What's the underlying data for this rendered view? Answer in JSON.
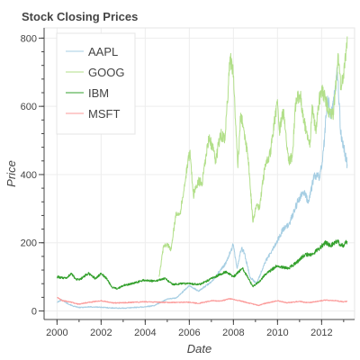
{
  "chart_data": {
    "type": "line",
    "title": "Stock Closing Prices",
    "xlabel": "Date",
    "ylabel": "Price",
    "xlim": [
      "1999-06-01",
      "2013-07-01"
    ],
    "ylim": [
      -25,
      830
    ],
    "x_ticks": [
      "2000",
      "2002",
      "2004",
      "2006",
      "2008",
      "2010",
      "2012"
    ],
    "y_ticks": [
      0,
      200,
      400,
      600,
      800
    ],
    "grid": true,
    "legend_position": "top-left",
    "series": [
      {
        "name": "AAPL",
        "color": "#a6cee3",
        "points": [
          [
            "2000-01-03",
            25
          ],
          [
            "2000-03-20",
            33
          ],
          [
            "2000-06-01",
            24
          ],
          [
            "2000-09-28",
            14
          ],
          [
            "2001-01-01",
            10
          ],
          [
            "2001-06-01",
            12
          ],
          [
            "2002-01-01",
            11
          ],
          [
            "2002-06-01",
            9
          ],
          [
            "2003-01-01",
            8
          ],
          [
            "2003-06-01",
            10
          ],
          [
            "2004-01-01",
            12
          ],
          [
            "2004-06-01",
            16
          ],
          [
            "2005-01-01",
            35
          ],
          [
            "2005-06-01",
            38
          ],
          [
            "2006-01-01",
            75
          ],
          [
            "2006-06-01",
            58
          ],
          [
            "2007-01-01",
            85
          ],
          [
            "2007-06-01",
            120
          ],
          [
            "2007-09-01",
            140
          ],
          [
            "2007-12-27",
            195
          ],
          [
            "2008-03-01",
            125
          ],
          [
            "2008-05-15",
            185
          ],
          [
            "2008-07-01",
            170
          ],
          [
            "2008-10-01",
            100
          ],
          [
            "2009-01-20",
            80
          ],
          [
            "2009-06-01",
            140
          ],
          [
            "2009-12-01",
            195
          ],
          [
            "2010-04-01",
            240
          ],
          [
            "2010-07-01",
            250
          ],
          [
            "2010-12-01",
            320
          ],
          [
            "2011-03-01",
            350
          ],
          [
            "2011-06-01",
            320
          ],
          [
            "2011-09-01",
            400
          ],
          [
            "2011-12-01",
            390
          ],
          [
            "2012-02-01",
            470
          ],
          [
            "2012-04-10",
            630
          ],
          [
            "2012-06-01",
            570
          ],
          [
            "2012-09-20",
            700
          ],
          [
            "2012-11-15",
            520
          ],
          [
            "2013-01-15",
            470
          ],
          [
            "2013-03-01",
            430
          ]
        ]
      },
      {
        "name": "GOOG",
        "color": "#b2df8a",
        "points": [
          [
            "2004-08-19",
            100
          ],
          [
            "2004-11-01",
            190
          ],
          [
            "2005-01-01",
            195
          ],
          [
            "2005-03-01",
            180
          ],
          [
            "2005-06-01",
            290
          ],
          [
            "2005-08-01",
            285
          ],
          [
            "2005-11-01",
            390
          ],
          [
            "2006-01-10",
            470
          ],
          [
            "2006-03-10",
            340
          ],
          [
            "2006-06-01",
            380
          ],
          [
            "2006-08-01",
            375
          ],
          [
            "2006-11-22",
            510
          ],
          [
            "2007-02-01",
            470
          ],
          [
            "2007-03-15",
            440
          ],
          [
            "2007-06-01",
            520
          ],
          [
            "2007-08-15",
            500
          ],
          [
            "2007-11-06",
            745
          ],
          [
            "2008-01-01",
            690
          ],
          [
            "2008-03-15",
            420
          ],
          [
            "2008-05-01",
            580
          ],
          [
            "2008-07-01",
            520
          ],
          [
            "2008-09-01",
            450
          ],
          [
            "2008-11-20",
            260
          ],
          [
            "2009-01-15",
            310
          ],
          [
            "2009-03-10",
            300
          ],
          [
            "2009-06-01",
            420
          ],
          [
            "2009-09-01",
            460
          ],
          [
            "2009-12-31",
            620
          ],
          [
            "2010-02-01",
            530
          ],
          [
            "2010-04-15",
            590
          ],
          [
            "2010-06-30",
            440
          ],
          [
            "2010-09-01",
            450
          ],
          [
            "2010-11-05",
            625
          ],
          [
            "2011-01-15",
            630
          ],
          [
            "2011-03-15",
            560
          ],
          [
            "2011-06-20",
            480
          ],
          [
            "2011-08-01",
            600
          ],
          [
            "2011-09-30",
            520
          ],
          [
            "2011-11-01",
            600
          ],
          [
            "2012-01-01",
            650
          ],
          [
            "2012-03-01",
            620
          ],
          [
            "2012-06-01",
            570
          ],
          [
            "2012-07-15",
            580
          ],
          [
            "2012-10-01",
            755
          ],
          [
            "2012-11-15",
            650
          ],
          [
            "2013-01-15",
            720
          ],
          [
            "2013-03-01",
            805
          ]
        ]
      },
      {
        "name": "IBM",
        "color": "#33a02c",
        "points": [
          [
            "2000-01-03",
            100
          ],
          [
            "2000-06-01",
            95
          ],
          [
            "2000-08-20",
            110
          ],
          [
            "2000-11-01",
            95
          ],
          [
            "2001-01-01",
            90
          ],
          [
            "2001-06-01",
            110
          ],
          [
            "2001-10-01",
            95
          ],
          [
            "2002-01-01",
            110
          ],
          [
            "2002-04-01",
            95
          ],
          [
            "2002-07-01",
            70
          ],
          [
            "2002-10-01",
            65
          ],
          [
            "2003-01-01",
            75
          ],
          [
            "2003-06-01",
            80
          ],
          [
            "2003-12-01",
            90
          ],
          [
            "2004-06-01",
            88
          ],
          [
            "2004-12-01",
            95
          ],
          [
            "2005-04-01",
            78
          ],
          [
            "2005-09-01",
            80
          ],
          [
            "2006-01-01",
            80
          ],
          [
            "2006-07-01",
            78
          ],
          [
            "2007-01-01",
            95
          ],
          [
            "2007-09-01",
            115
          ],
          [
            "2008-01-01",
            100
          ],
          [
            "2008-06-01",
            125
          ],
          [
            "2008-11-20",
            72
          ],
          [
            "2009-03-01",
            85
          ],
          [
            "2009-06-01",
            105
          ],
          [
            "2009-12-01",
            130
          ],
          [
            "2010-04-01",
            128
          ],
          [
            "2010-07-01",
            125
          ],
          [
            "2010-12-01",
            145
          ],
          [
            "2011-04-01",
            165
          ],
          [
            "2011-08-01",
            165
          ],
          [
            "2011-12-01",
            185
          ],
          [
            "2012-03-01",
            200
          ],
          [
            "2012-06-01",
            192
          ],
          [
            "2012-09-20",
            205
          ],
          [
            "2012-11-15",
            190
          ],
          [
            "2013-01-15",
            195
          ],
          [
            "2013-03-01",
            205
          ]
        ]
      },
      {
        "name": "MSFT",
        "color": "#fb9a99",
        "points": [
          [
            "2000-01-03",
            40
          ],
          [
            "2000-04-01",
            30
          ],
          [
            "2000-08-01",
            27
          ],
          [
            "2000-12-20",
            20
          ],
          [
            "2001-06-01",
            25
          ],
          [
            "2002-01-01",
            30
          ],
          [
            "2002-07-01",
            24
          ],
          [
            "2003-01-01",
            24
          ],
          [
            "2004-01-01",
            27
          ],
          [
            "2004-06-01",
            26
          ],
          [
            "2005-01-01",
            25
          ],
          [
            "2006-01-01",
            26
          ],
          [
            "2006-06-01",
            22
          ],
          [
            "2007-01-01",
            30
          ],
          [
            "2007-06-01",
            29
          ],
          [
            "2007-11-01",
            36
          ],
          [
            "2008-06-01",
            28
          ],
          [
            "2009-02-20",
            16
          ],
          [
            "2009-06-01",
            22
          ],
          [
            "2010-01-01",
            30
          ],
          [
            "2010-06-01",
            24
          ],
          [
            "2011-01-01",
            28
          ],
          [
            "2011-06-01",
            24
          ],
          [
            "2012-03-01",
            32
          ],
          [
            "2012-09-01",
            30
          ],
          [
            "2013-01-01",
            27
          ],
          [
            "2013-03-01",
            28
          ]
        ]
      }
    ]
  }
}
